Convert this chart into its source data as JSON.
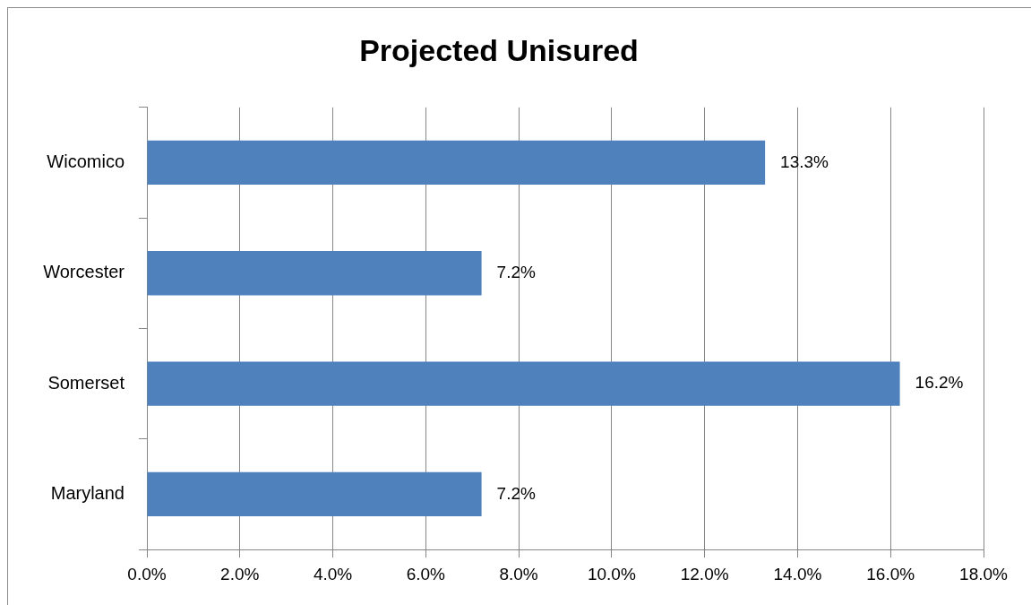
{
  "chart_data": {
    "type": "bar",
    "orientation": "horizontal",
    "title": "Projected Unisured",
    "categories": [
      "Wicomico",
      "Worcester",
      "Somerset",
      "Maryland"
    ],
    "values": [
      13.3,
      7.2,
      16.2,
      7.2
    ],
    "color": "#4f81bd",
    "value_labels": [
      "13.3%",
      "7.2%",
      "16.2%",
      "7.2%"
    ],
    "xlim": [
      0,
      18
    ],
    "xticks": [
      {
        "value": 0,
        "label": "0.0%"
      },
      {
        "value": 2,
        "label": "2.0%"
      },
      {
        "value": 4,
        "label": "4.0%"
      },
      {
        "value": 6,
        "label": "6.0%"
      },
      {
        "value": 8,
        "label": "8.0%"
      },
      {
        "value": 10,
        "label": "10.0%"
      },
      {
        "value": 12,
        "label": "12.0%"
      },
      {
        "value": 14,
        "label": "14.0%"
      },
      {
        "value": 16,
        "label": "16.0%"
      },
      {
        "value": 18,
        "label": "18.0%"
      }
    ],
    "grid": "x"
  }
}
